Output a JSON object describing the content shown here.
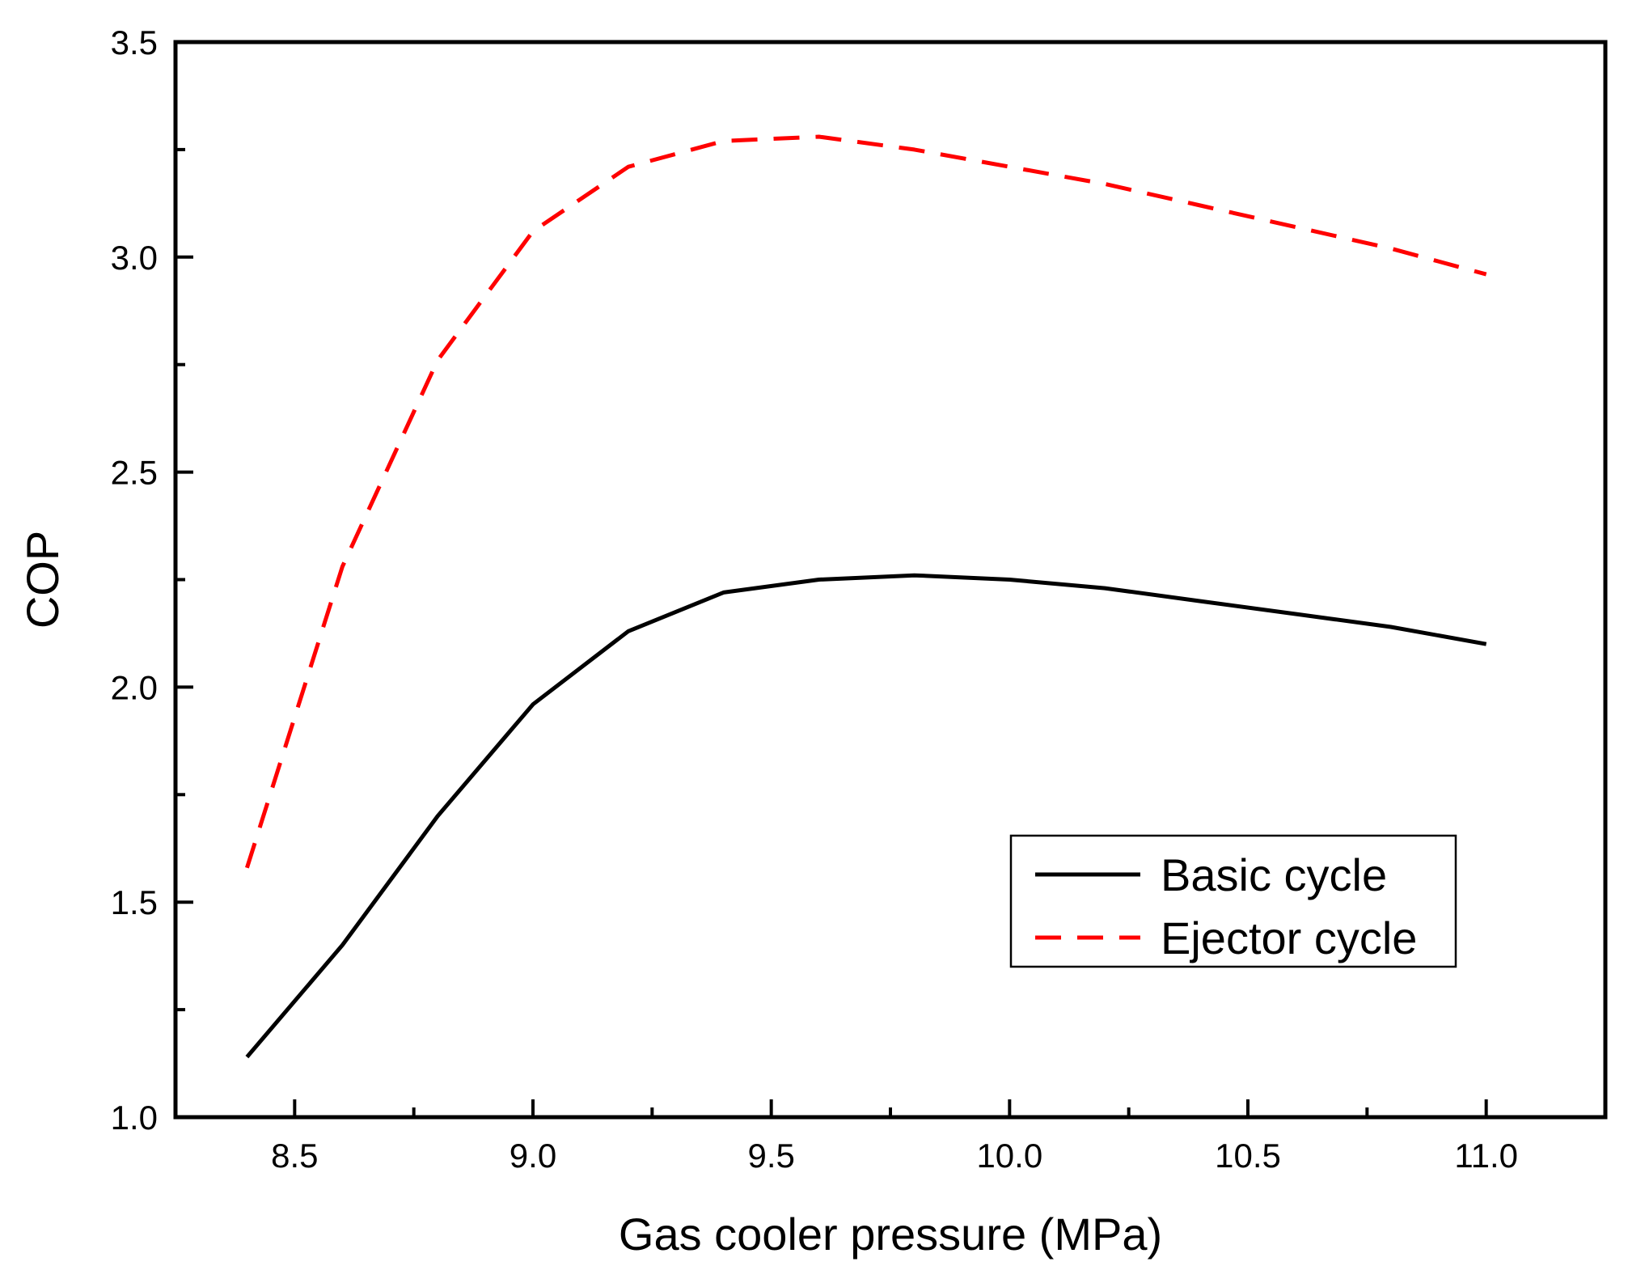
{
  "chart_data": {
    "type": "line",
    "title": "",
    "xlabel": "Gas cooler pressure (MPa)",
    "ylabel": "COP",
    "xlim": [
      8.25,
      11.25
    ],
    "ylim": [
      1.0,
      3.5
    ],
    "x_ticks": [
      "8.5",
      "9.0",
      "9.5",
      "10.0",
      "10.5",
      "11.0"
    ],
    "y_ticks": [
      "1.0",
      "1.5",
      "2.0",
      "2.5",
      "3.0",
      "3.5"
    ],
    "grid": false,
    "legend_position": "lower-right",
    "series": [
      {
        "name": "Basic cycle",
        "color": "#000000",
        "style": "solid",
        "x": [
          8.4,
          8.6,
          8.8,
          9.0,
          9.2,
          9.4,
          9.6,
          9.8,
          10.0,
          10.2,
          10.4,
          10.6,
          10.8,
          11.0
        ],
        "y": [
          1.14,
          1.4,
          1.7,
          1.96,
          2.13,
          2.22,
          2.25,
          2.26,
          2.25,
          2.23,
          2.2,
          2.17,
          2.14,
          2.1
        ]
      },
      {
        "name": "Ejector cycle",
        "color": "#ff0000",
        "style": "dashed",
        "x": [
          8.4,
          8.6,
          8.8,
          9.0,
          9.2,
          9.4,
          9.6,
          9.8,
          10.0,
          10.2,
          10.4,
          10.6,
          10.8,
          11.0
        ],
        "y": [
          1.58,
          2.28,
          2.76,
          3.06,
          3.21,
          3.27,
          3.28,
          3.25,
          3.21,
          3.17,
          3.12,
          3.07,
          3.02,
          2.96
        ]
      }
    ]
  }
}
